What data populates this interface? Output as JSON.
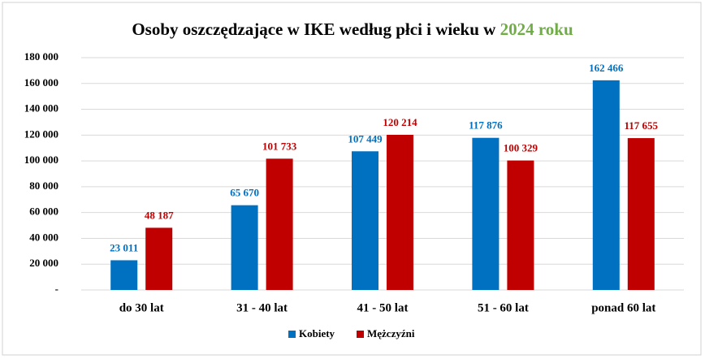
{
  "chart_data": {
    "type": "bar",
    "title": "Osoby oszczędzające  w IKE według płci i wieku w",
    "title_highlight": "2024 roku",
    "categories": [
      "do 30 lat",
      "31 - 40 lat",
      "41 - 50 lat",
      "51 - 60 lat",
      "ponad 60 lat"
    ],
    "series": [
      {
        "name": "Kobiety",
        "color": "#0070c0",
        "values": [
          23011,
          65670,
          107449,
          117876,
          162466
        ],
        "value_labels": [
          "23 011",
          "65 670",
          "107 449",
          "117 876",
          "162 466"
        ]
      },
      {
        "name": "Mężczyźni",
        "color": "#c00000",
        "values": [
          48187,
          101733,
          120214,
          100329,
          117655
        ],
        "value_labels": [
          "48 187",
          "101 733",
          "120 214",
          "100 329",
          "117 655"
        ]
      }
    ],
    "ylim": [
      0,
      180000
    ],
    "yticks": [
      {
        "value": 0,
        "label": "-"
      },
      {
        "value": 20000,
        "label": "20 000"
      },
      {
        "value": 40000,
        "label": "40 000"
      },
      {
        "value": 60000,
        "label": "60 000"
      },
      {
        "value": 80000,
        "label": "80 000"
      },
      {
        "value": 100000,
        "label": "100 000"
      },
      {
        "value": 120000,
        "label": "120 000"
      },
      {
        "value": 140000,
        "label": "140 000"
      },
      {
        "value": 160000,
        "label": "160 000"
      },
      {
        "value": 180000,
        "label": "180 000"
      }
    ],
    "grid": true
  }
}
